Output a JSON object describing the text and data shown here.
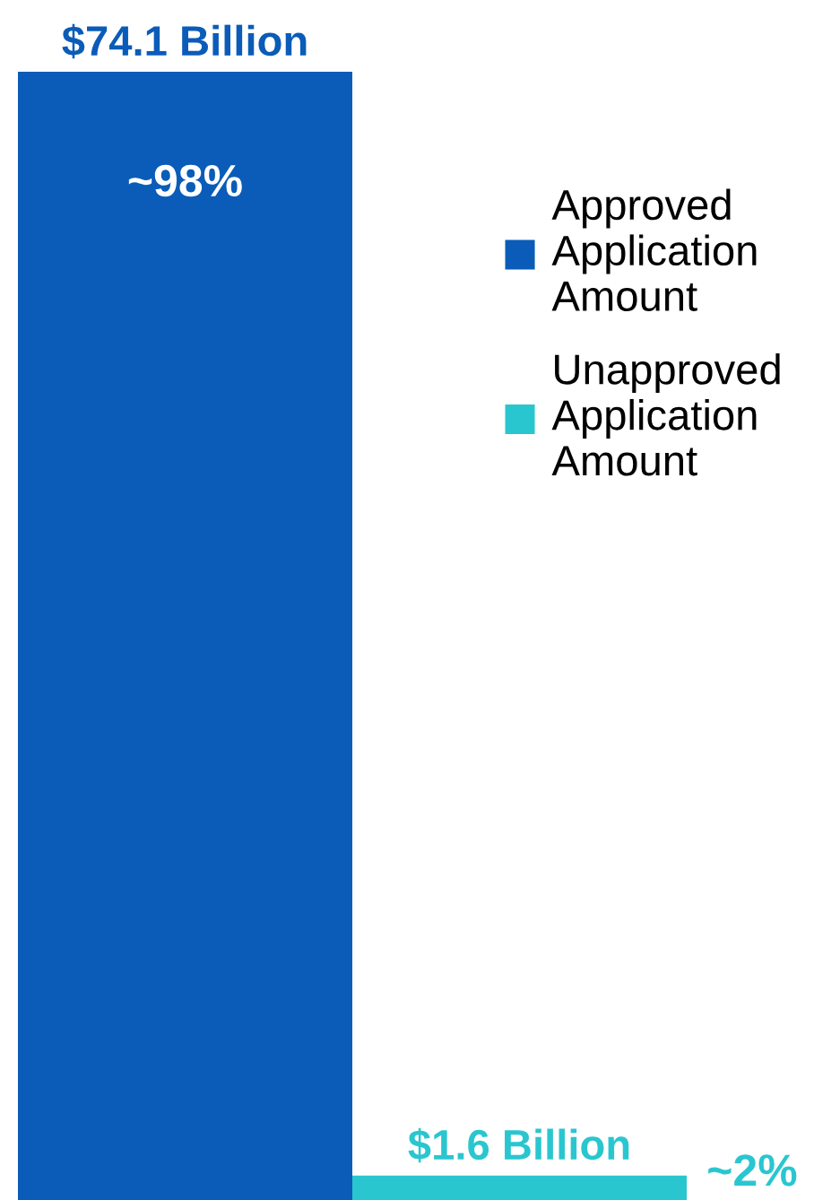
{
  "chart_data": {
    "type": "bar",
    "categories": [
      null
    ],
    "series": [
      {
        "name": "Approved\nApplication\nAmount",
        "color": "#0a5cb8",
        "values": [
          74.1
        ],
        "value_labels": [
          "$74.1 Billion"
        ]
      },
      {
        "name": "Unapproved\nApplication\nAmount",
        "color": "#2ac6d0",
        "values": [
          1.6
        ],
        "value_labels": [
          "$1.6 Billion"
        ]
      }
    ],
    "annotations": [
      "~98%",
      "~2%"
    ],
    "legend": "top right"
  }
}
